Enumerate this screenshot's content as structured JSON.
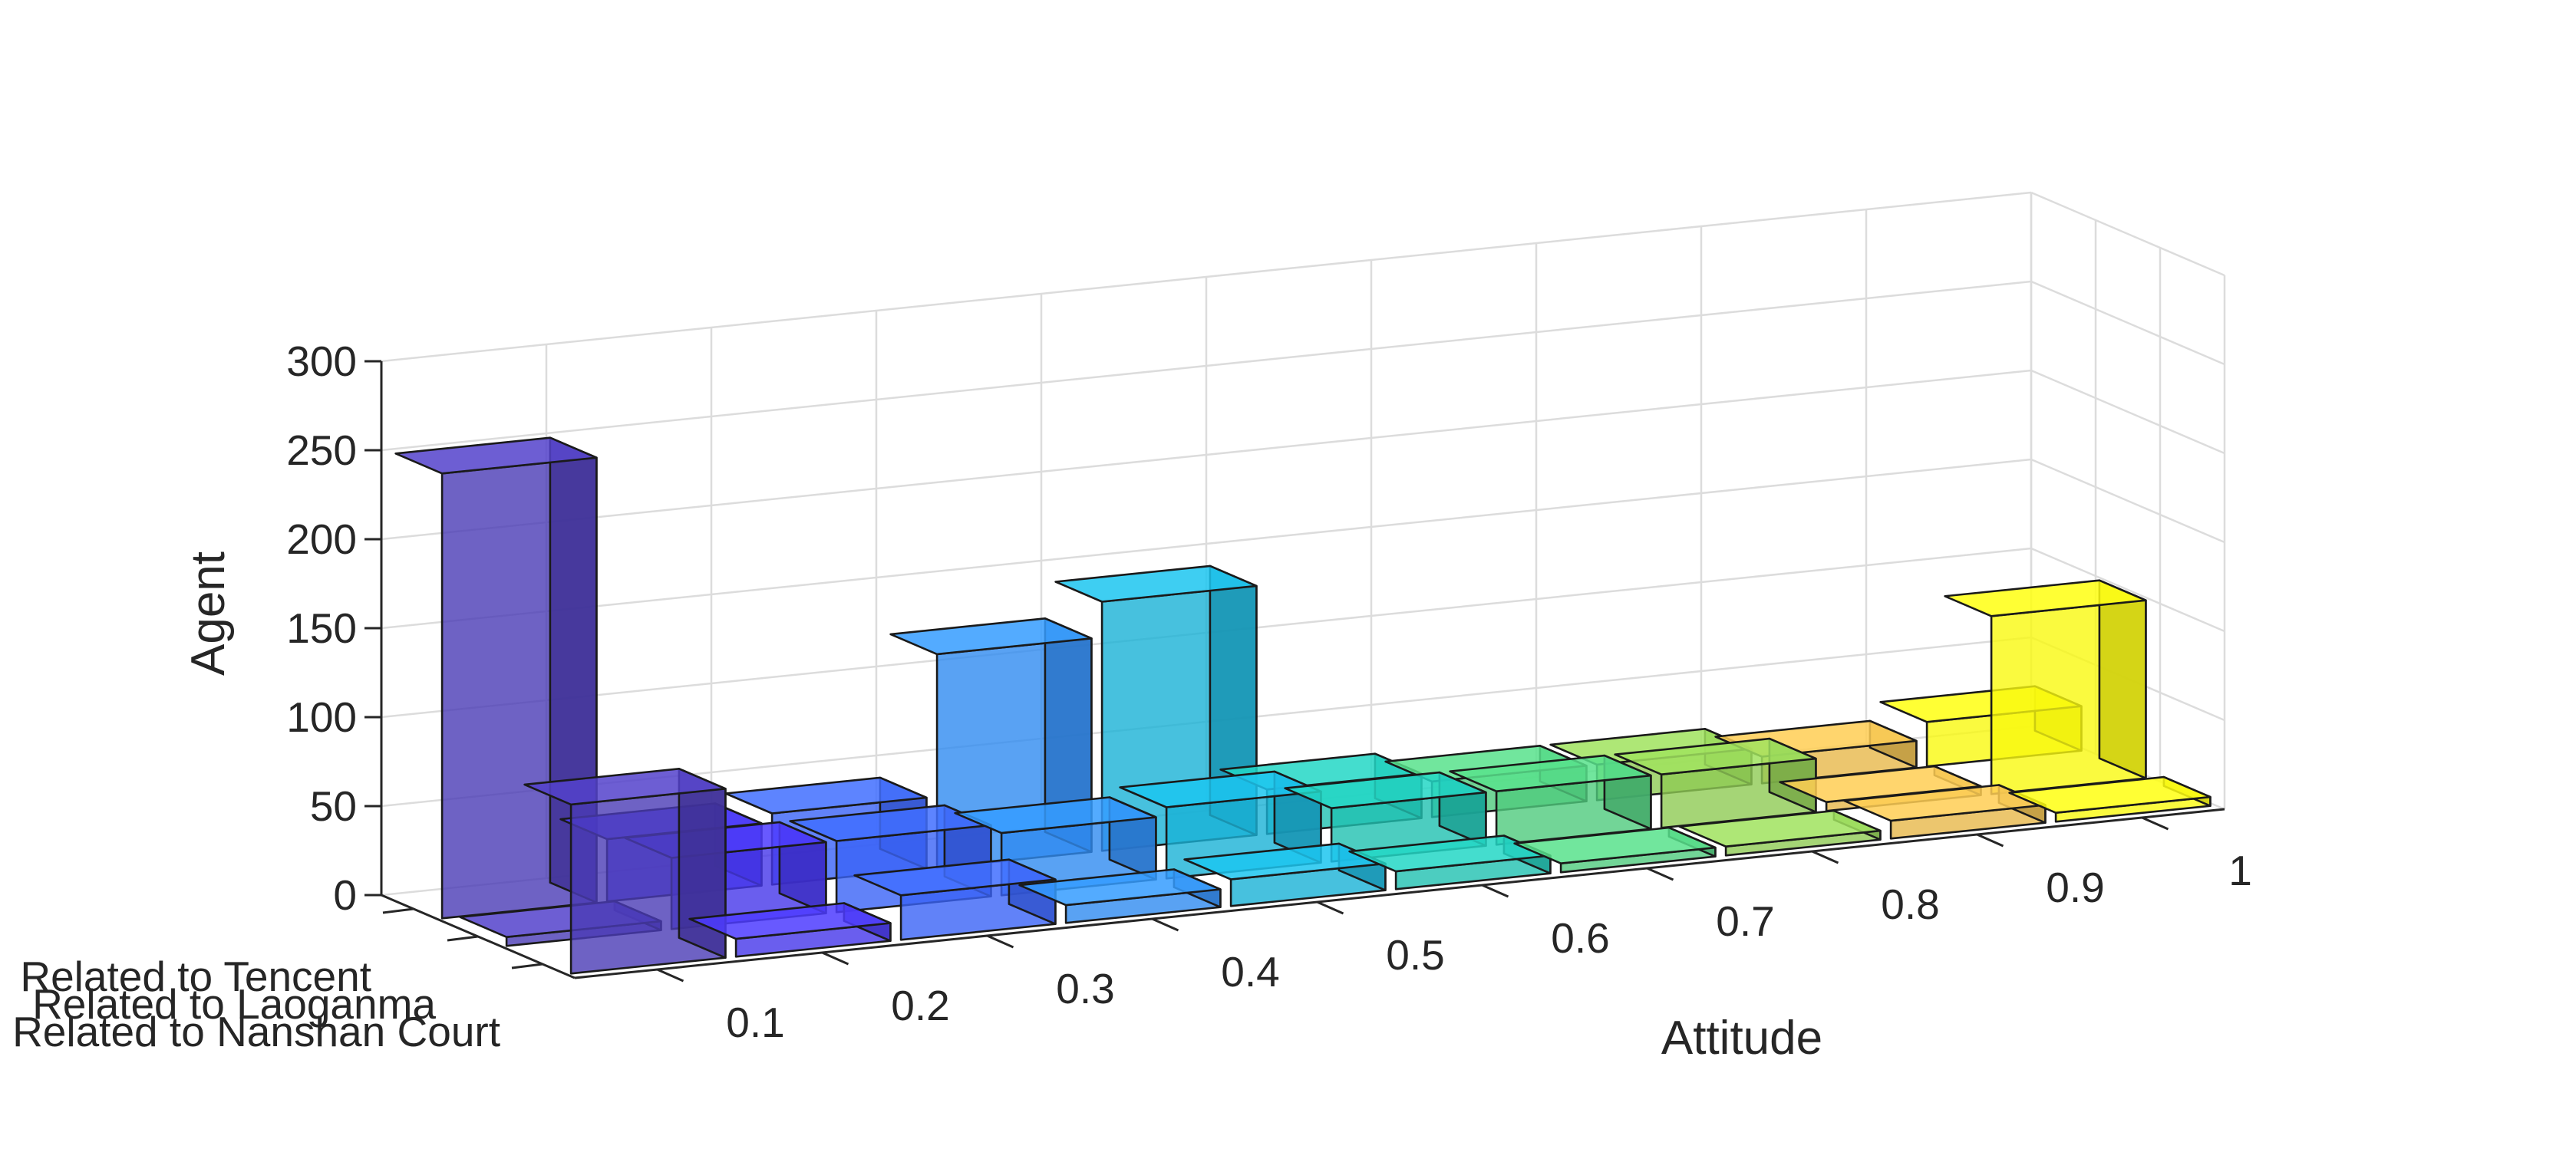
{
  "chart_data": {
    "type": "bar3d",
    "title": "",
    "xlabel": "Attitude",
    "ylabel": "",
    "zlabel": "Agent",
    "zlim": [
      0,
      300
    ],
    "z_ticks": [
      "0",
      "50",
      "100",
      "150",
      "200",
      "250",
      "300"
    ],
    "x": [
      "0.1",
      "0.2",
      "0.3",
      "0.4",
      "0.5",
      "0.6",
      "0.7",
      "0.8",
      "0.9",
      "1"
    ],
    "categories": [
      "Related to Tencent",
      "Related to Laoganma",
      "Related to Nanshan Court"
    ],
    "grid": true,
    "colormap": "parula (by attitude)",
    "series": [
      {
        "name": "Related to Tencent",
        "values": [
          250,
          35,
          40,
          120,
          140,
          25,
          20,
          20,
          15,
          25
        ]
      },
      {
        "name": "Related to Laoganma",
        "values": [
          5,
          40,
          40,
          35,
          40,
          30,
          30,
          30,
          5,
          100
        ]
      },
      {
        "name": "Related to Nanshan Court",
        "values": [
          95,
          10,
          25,
          10,
          15,
          10,
          5,
          5,
          10,
          5
        ]
      }
    ],
    "bar_colors": [
      "#4a3bb5",
      "#4536ea",
      "#3a63f6",
      "#2f8bf0",
      "#19b1d6",
      "#1fc0b0",
      "#4fca7d",
      "#8fcb54",
      "#e7b84a",
      "#f9f90f"
    ]
  }
}
